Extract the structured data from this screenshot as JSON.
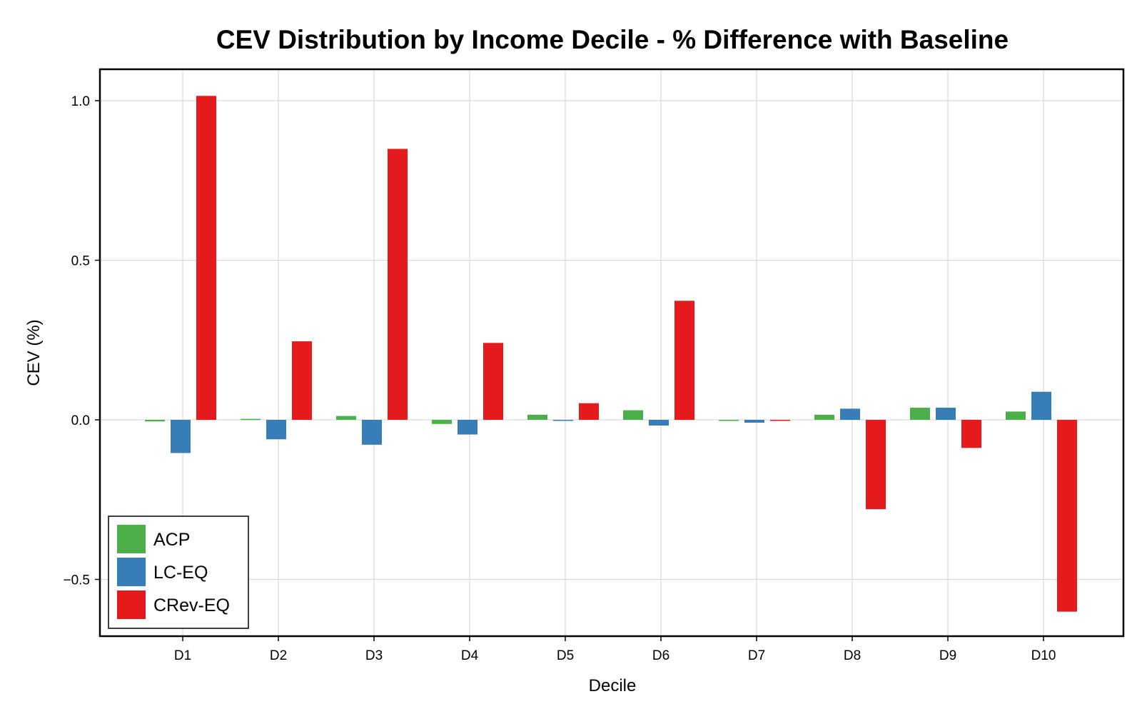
{
  "chart_data": {
    "type": "bar",
    "title": "CEV Distribution by Income Decile - % Difference with Baseline",
    "xlabel": "Decile",
    "ylabel": "CEV (%)",
    "categories": [
      "D1",
      "D2",
      "D3",
      "D4",
      "D5",
      "D6",
      "D7",
      "D8",
      "D9",
      "D10"
    ],
    "series": [
      {
        "name": "ACP",
        "color": "#4daf4a",
        "values": [
          -0.005,
          0.003,
          0.012,
          -0.013,
          0.016,
          0.03,
          -0.002,
          0.016,
          0.038,
          0.026
        ]
      },
      {
        "name": "LC-EQ",
        "color": "#377eb8",
        "values": [
          -0.104,
          -0.061,
          -0.078,
          -0.046,
          -0.003,
          -0.018,
          -0.009,
          0.035,
          0.038,
          0.088
        ]
      },
      {
        "name": "CRev-EQ",
        "color": "#e41a1c",
        "values": [
          1.015,
          0.246,
          0.849,
          0.241,
          0.052,
          0.373,
          -0.003,
          -0.28,
          -0.088,
          -0.601
        ]
      }
    ],
    "yticks": [
      1.0,
      0.5,
      0.0,
      -0.5
    ],
    "ytick_labels": [
      "1.0",
      "0.5",
      "0.0",
      "−0.5"
    ],
    "ylim": [
      -0.68,
      1.09
    ],
    "grid": true,
    "legend_position": "bottom-left"
  }
}
